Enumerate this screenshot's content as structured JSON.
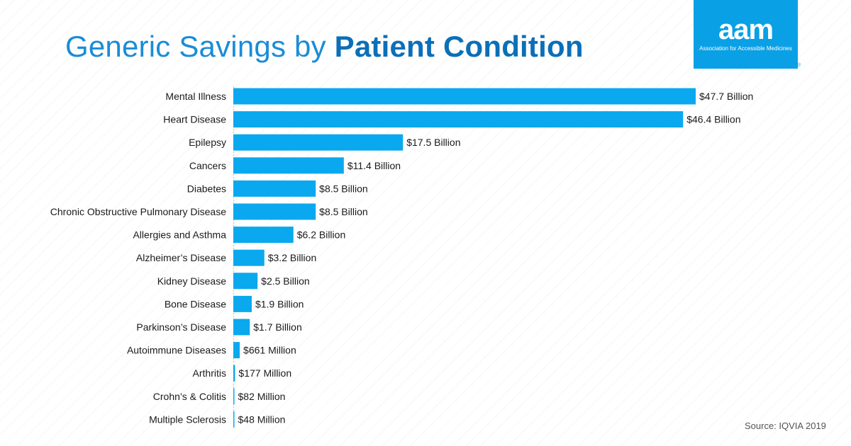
{
  "header": {
    "title_light": "Generic Savings by ",
    "title_bold": "Patient Condition"
  },
  "logo": {
    "mark": "aam",
    "subtitle": "Association for Accessible Medicines",
    "registered": "®"
  },
  "source": "Source: IQVIA 2019",
  "colors": {
    "bar": "#0aa8ee",
    "title": "#1a8cd8",
    "title_bold": "#0b6fb8",
    "logo_bg": "#0aa0e6",
    "text": "#1a1a1a"
  },
  "chart_data": {
    "type": "bar",
    "orientation": "horizontal",
    "title": "Generic Savings by Patient Condition",
    "xlabel": "",
    "ylabel": "",
    "unit": "billion USD",
    "xlim": [
      0,
      47.7
    ],
    "grid": false,
    "categories": [
      "Mental Illness",
      "Heart Disease",
      "Epilepsy",
      "Cancers",
      "Diabetes",
      "Chronic Obstructive Pulmonary Disease",
      "Allergies and Asthma",
      "Alzheimer’s Disease",
      "Kidney Disease",
      "Bone Disease",
      "Parkinson’s Disease",
      "Autoimmune Diseases",
      "Arthritis",
      "Crohn’s & Colitis",
      "Multiple Sclerosis"
    ],
    "values": [
      47.7,
      46.4,
      17.5,
      11.4,
      8.5,
      8.5,
      6.2,
      3.2,
      2.5,
      1.9,
      1.7,
      0.661,
      0.177,
      0.082,
      0.048
    ],
    "labels": [
      "$47.7 Billion",
      "$46.4 Billion",
      "$17.5 Billion",
      "$11.4 Billion",
      "$8.5 Billion",
      "$8.5 Billion",
      "$6.2 Billion",
      "$3.2 Billion",
      "$2.5 Billion",
      "$1.9 Billion",
      "$1.7 Billion",
      "$661 Million",
      "$177 Million",
      "$82 Million",
      "$48 Million"
    ]
  }
}
